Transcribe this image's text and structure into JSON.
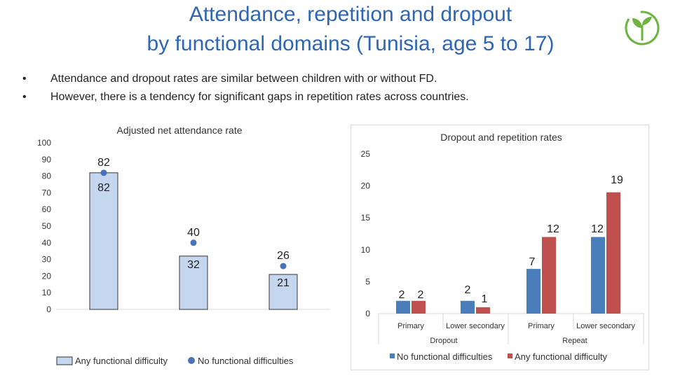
{
  "title": {
    "line1": "Attendance, repetition and dropout",
    "line2": "by functional domains (Tunisia, age 5 to 17)"
  },
  "logo": {
    "icon": "sprout-icon",
    "color": "#6cb33f"
  },
  "bullets": [
    "Attendance and dropout rates are similar between children with or without FD.",
    "However, there is a tendency for significant gaps in repetition rates across countries."
  ],
  "chart_data": [
    {
      "type": "bar",
      "title": "Adjusted net attendance rate",
      "ylim": [
        0,
        100
      ],
      "yticks": [
        0,
        10,
        20,
        30,
        40,
        50,
        60,
        70,
        80,
        90,
        100
      ],
      "categories": [
        "",
        "",
        ""
      ],
      "series": [
        {
          "name": "Any functional difficulty",
          "kind": "bar",
          "values": [
            82,
            32,
            21
          ],
          "color": "#c5d6ef"
        },
        {
          "name": "No functional difficulties",
          "kind": "marker",
          "values": [
            82,
            40,
            26
          ],
          "color": "#4a72b8"
        }
      ]
    },
    {
      "type": "bar",
      "title": "Dropout and repetition rates",
      "ylim": [
        0,
        25
      ],
      "yticks": [
        0,
        5,
        10,
        15,
        20,
        25
      ],
      "categories": [
        "Primary",
        "Lower secondary",
        "Primary",
        "Lower secondary"
      ],
      "groups": [
        "Dropout",
        "Repeat"
      ],
      "series": [
        {
          "name": "No functional difficulties",
          "values": [
            2,
            2,
            7,
            12
          ],
          "color": "#4a7ebb"
        },
        {
          "name": "Any functional difficulty",
          "values": [
            2,
            1,
            12,
            19
          ],
          "color": "#c0504d"
        }
      ]
    }
  ]
}
